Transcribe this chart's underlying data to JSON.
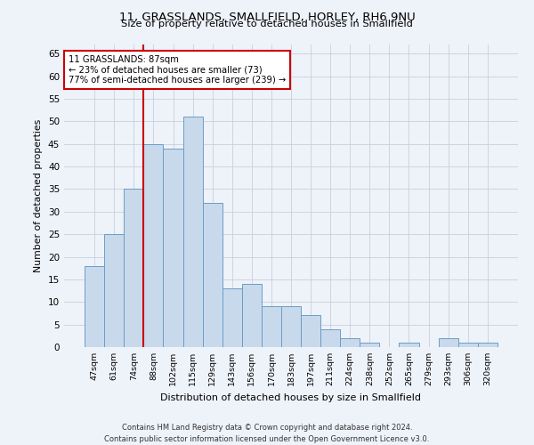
{
  "title": "11, GRASSLANDS, SMALLFIELD, HORLEY, RH6 9NU",
  "subtitle": "Size of property relative to detached houses in Smallfield",
  "xlabel": "Distribution of detached houses by size in Smallfield",
  "ylabel": "Number of detached properties",
  "categories": [
    "47sqm",
    "61sqm",
    "74sqm",
    "88sqm",
    "102sqm",
    "115sqm",
    "129sqm",
    "143sqm",
    "156sqm",
    "170sqm",
    "183sqm",
    "197sqm",
    "211sqm",
    "224sqm",
    "238sqm",
    "252sqm",
    "265sqm",
    "279sqm",
    "293sqm",
    "306sqm",
    "320sqm"
  ],
  "values": [
    18,
    25,
    35,
    45,
    44,
    51,
    32,
    13,
    14,
    9,
    9,
    7,
    4,
    2,
    1,
    0,
    1,
    0,
    2,
    1,
    1
  ],
  "bar_color": "#c9d9ec",
  "bar_edge_color": "#6a9ec5",
  "property_label": "11 GRASSLANDS: 87sqm",
  "annotation_line1": "← 23% of detached houses are smaller (73)",
  "annotation_line2": "77% of semi-detached houses are larger (239) →",
  "vline_color": "#cc0000",
  "annotation_box_color": "#ffffff",
  "annotation_box_edge": "#cc0000",
  "ylim": [
    0,
    67
  ],
  "yticks": [
    0,
    5,
    10,
    15,
    20,
    25,
    30,
    35,
    40,
    45,
    50,
    55,
    60,
    65
  ],
  "footer_line1": "Contains HM Land Registry data © Crown copyright and database right 2024.",
  "footer_line2": "Contains public sector information licensed under the Open Government Licence v3.0.",
  "bg_color": "#eef2f9",
  "grid_color": "#c8d0de"
}
